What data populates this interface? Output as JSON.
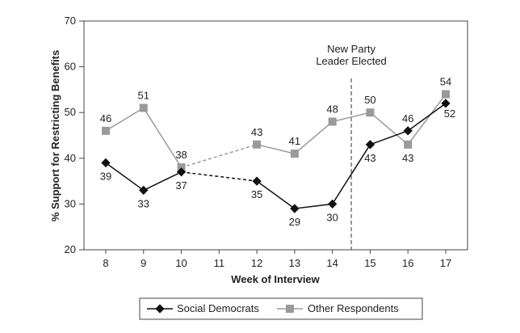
{
  "chart_data": {
    "type": "line",
    "title": "",
    "xlabel": "Week of Interview",
    "ylabel": "% Support for Restricting Benefits",
    "x": [
      8,
      9,
      10,
      11,
      12,
      13,
      14,
      15,
      16,
      17
    ],
    "xlim": [
      8,
      17
    ],
    "ylim": [
      20,
      70
    ],
    "yticks": [
      20,
      30,
      40,
      50,
      60,
      70
    ],
    "grid": false,
    "legend_position": "bottom",
    "series": [
      {
        "name": "Social Democrats",
        "color": "#111111",
        "marker": "diamond",
        "points": [
          [
            8,
            39
          ],
          [
            9,
            33
          ],
          [
            10,
            37
          ],
          [
            12,
            35
          ],
          [
            13,
            29
          ],
          [
            14,
            30
          ],
          [
            15,
            43
          ],
          [
            16,
            46
          ],
          [
            17,
            52
          ]
        ],
        "labels": [
          "39",
          "33",
          "37",
          "35",
          "29",
          "30",
          "43",
          "46",
          "52"
        ],
        "dashed_segment": [
          10,
          12
        ]
      },
      {
        "name": "Other Respondents",
        "color": "#9a9a9a",
        "marker": "square",
        "points": [
          [
            8,
            46
          ],
          [
            9,
            51
          ],
          [
            10,
            38
          ],
          [
            12,
            43
          ],
          [
            13,
            41
          ],
          [
            14,
            48
          ],
          [
            15,
            50
          ],
          [
            16,
            43
          ],
          [
            17,
            54
          ]
        ],
        "labels": [
          "46",
          "51",
          "38",
          "43",
          "41",
          "48",
          "50",
          "43",
          "54"
        ],
        "dashed_segment": [
          10,
          12
        ]
      }
    ],
    "annotation": {
      "text_line1": "New Party",
      "text_line2": "Leader Elected",
      "x": 14.5
    }
  }
}
